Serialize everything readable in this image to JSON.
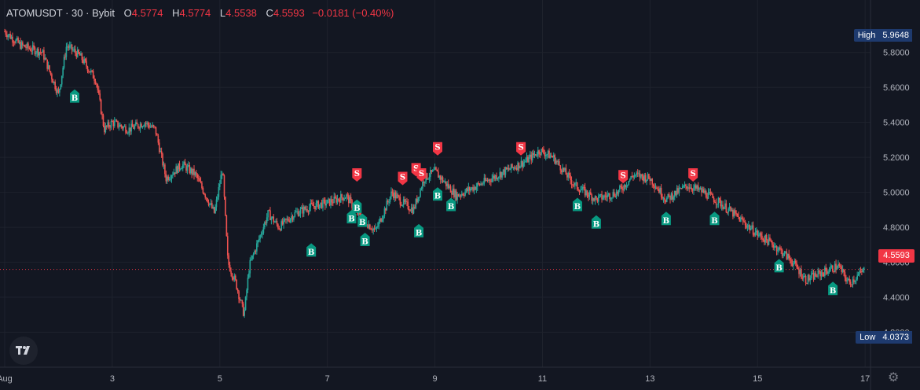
{
  "legend": {
    "symbol": "ATOMUSDT · 30 · Bybit",
    "o_label": "O",
    "o": "4.5774",
    "h_label": "H",
    "h": "4.5774",
    "l_label": "L",
    "l": "4.5538",
    "c_label": "C",
    "c": "4.5593",
    "change": "−0.0181 (−0.40%)"
  },
  "high_tag": {
    "label": "High",
    "value": "5.9648"
  },
  "low_tag": {
    "label": "Low",
    "value": "4.0373"
  },
  "last_price": "4.5593",
  "colors": {
    "up": "#26a69a",
    "down": "#ef5350",
    "buy": "#089981",
    "sell": "#f23645",
    "bg": "#131722",
    "grid": "#1e222d"
  },
  "chart_data": {
    "type": "candlestick",
    "y_ticks": [
      "5.8000",
      "5.6000",
      "5.4000",
      "5.2000",
      "5.0000",
      "4.8000",
      "4.6000",
      "4.4000",
      "4.2000"
    ],
    "x_ticks": [
      "Aug",
      "3",
      "5",
      "7",
      "9",
      "11",
      "13",
      "15",
      "17"
    ],
    "x_tick_days": [
      1,
      3,
      5,
      7,
      9,
      11,
      13,
      15,
      17
    ],
    "ylim": [
      4.0,
      6.1
    ],
    "xlim": [
      1,
      17.1
    ],
    "path": [
      [
        1.0,
        5.92
      ],
      [
        1.3,
        5.84
      ],
      [
        1.7,
        5.8
      ],
      [
        2.0,
        5.56
      ],
      [
        2.15,
        5.84
      ],
      [
        2.4,
        5.78
      ],
      [
        2.7,
        5.64
      ],
      [
        2.85,
        5.36
      ],
      [
        3.0,
        5.4
      ],
      [
        3.3,
        5.36
      ],
      [
        3.6,
        5.4
      ],
      [
        3.8,
        5.36
      ],
      [
        4.0,
        5.08
      ],
      [
        4.3,
        5.16
      ],
      [
        4.55,
        5.1
      ],
      [
        4.9,
        4.88
      ],
      [
        5.05,
        5.14
      ],
      [
        5.15,
        4.6
      ],
      [
        5.3,
        4.48
      ],
      [
        5.45,
        4.3
      ],
      [
        5.55,
        4.58
      ],
      [
        5.9,
        4.88
      ],
      [
        6.1,
        4.8
      ],
      [
        6.4,
        4.88
      ],
      [
        6.7,
        4.92
      ],
      [
        7.0,
        4.94
      ],
      [
        7.35,
        4.98
      ],
      [
        7.6,
        4.86
      ],
      [
        7.9,
        4.78
      ],
      [
        8.2,
        5.0
      ],
      [
        8.4,
        4.94
      ],
      [
        8.6,
        4.9
      ],
      [
        8.8,
        5.08
      ],
      [
        9.0,
        5.12
      ],
      [
        9.4,
        4.98
      ],
      [
        9.8,
        5.04
      ],
      [
        10.3,
        5.12
      ],
      [
        10.7,
        5.18
      ],
      [
        10.95,
        5.24
      ],
      [
        11.2,
        5.2
      ],
      [
        11.6,
        5.04
      ],
      [
        12.0,
        4.96
      ],
      [
        12.4,
        5.0
      ],
      [
        12.7,
        5.1
      ],
      [
        13.0,
        5.08
      ],
      [
        13.3,
        4.96
      ],
      [
        13.7,
        5.04
      ],
      [
        14.0,
        5.0
      ],
      [
        14.3,
        4.94
      ],
      [
        14.7,
        4.84
      ],
      [
        15.0,
        4.76
      ],
      [
        15.3,
        4.7
      ],
      [
        15.6,
        4.62
      ],
      [
        15.9,
        4.5
      ],
      [
        16.2,
        4.54
      ],
      [
        16.5,
        4.58
      ],
      [
        16.7,
        4.48
      ],
      [
        17.0,
        4.56
      ]
    ],
    "signals": [
      {
        "day": 2.3,
        "price": 5.58,
        "type": "B"
      },
      {
        "day": 6.7,
        "price": 4.7,
        "type": "B"
      },
      {
        "day": 7.45,
        "price": 4.89,
        "type": "B"
      },
      {
        "day": 7.55,
        "price": 4.95,
        "type": "B"
      },
      {
        "day": 7.65,
        "price": 4.87,
        "type": "B"
      },
      {
        "day": 7.7,
        "price": 4.76,
        "type": "B"
      },
      {
        "day": 8.7,
        "price": 4.81,
        "type": "B"
      },
      {
        "day": 9.05,
        "price": 5.02,
        "type": "B"
      },
      {
        "day": 9.3,
        "price": 4.96,
        "type": "B"
      },
      {
        "day": 11.65,
        "price": 4.96,
        "type": "B"
      },
      {
        "day": 12.0,
        "price": 4.86,
        "type": "B"
      },
      {
        "day": 13.3,
        "price": 4.88,
        "type": "B"
      },
      {
        "day": 14.2,
        "price": 4.88,
        "type": "B"
      },
      {
        "day": 15.4,
        "price": 4.61,
        "type": "B"
      },
      {
        "day": 16.4,
        "price": 4.48,
        "type": "B"
      },
      {
        "day": 7.55,
        "price": 5.07,
        "type": "S"
      },
      {
        "day": 8.4,
        "price": 5.05,
        "type": "S"
      },
      {
        "day": 8.65,
        "price": 5.1,
        "type": "S"
      },
      {
        "day": 8.75,
        "price": 5.07,
        "type": "S"
      },
      {
        "day": 9.05,
        "price": 5.22,
        "type": "S"
      },
      {
        "day": 10.6,
        "price": 5.22,
        "type": "S"
      },
      {
        "day": 12.5,
        "price": 5.06,
        "type": "S"
      },
      {
        "day": 13.8,
        "price": 5.07,
        "type": "S"
      }
    ]
  }
}
